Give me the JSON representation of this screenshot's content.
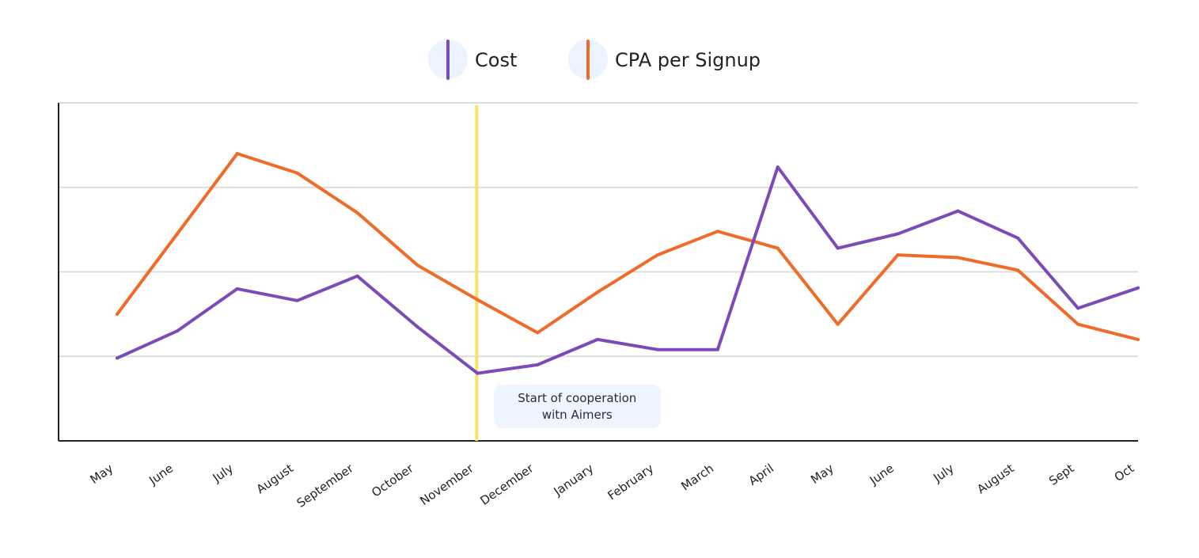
{
  "chart_data": {
    "type": "line",
    "title": "",
    "xlabel": "",
    "ylabel": "",
    "ylim": [
      0,
      4
    ],
    "grid": true,
    "legend": "top-center",
    "categories": [
      "May",
      "June",
      "July",
      "August",
      "September",
      "October",
      "November",
      "December",
      "January",
      "February",
      "March",
      "April",
      "May",
      "June",
      "July",
      "August",
      "Sept",
      "Oct"
    ],
    "series": [
      {
        "name": "Cost",
        "color": "#7b4bb8",
        "values": [
          0.98,
          1.3,
          1.8,
          1.66,
          1.95,
          1.35,
          0.8,
          0.9,
          1.2,
          1.08,
          1.08,
          3.24,
          2.28,
          2.45,
          2.72,
          2.4,
          1.57,
          1.81
        ]
      },
      {
        "name": "CPA per Signup",
        "color": "#f06a28",
        "values": [
          1.5,
          2.45,
          3.4,
          3.17,
          2.7,
          2.08,
          1.67,
          1.28,
          1.76,
          2.2,
          2.48,
          2.28,
          1.38,
          2.2,
          2.17,
          2.02,
          1.38,
          1.2
        ]
      }
    ],
    "annotation": {
      "category_index": 6,
      "color": "#f7e36b",
      "text_lines": [
        "Start of cooperation",
        "witn Aimers"
      ]
    }
  }
}
